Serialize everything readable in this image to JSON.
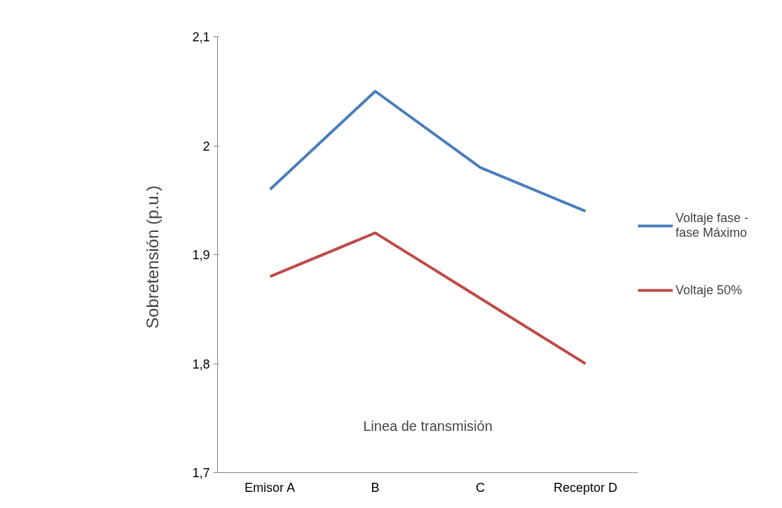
{
  "chart_data": {
    "type": "line",
    "xlabel": "Linea de transmisión",
    "ylabel": "Sobretensión  (p.u.)",
    "categories": [
      "Emisor A",
      "B",
      "C",
      "Receptor D"
    ],
    "series": [
      {
        "name": "Voltaje fase - fase Máximo",
        "color": "#4a7ebb",
        "values": [
          1.96,
          2.05,
          1.98,
          1.94
        ]
      },
      {
        "name": "Voltaje 50%",
        "color": "#be4b48",
        "values": [
          1.88,
          1.92,
          1.86,
          1.8
        ]
      }
    ],
    "ylim": [
      1.7,
      2.1
    ],
    "yticks": [
      {
        "value": 1.7,
        "label": "1,7"
      },
      {
        "value": 1.8,
        "label": "1,8"
      },
      {
        "value": 1.9,
        "label": "1,9"
      },
      2,
      {
        "value": 2.1,
        "label": "2,1"
      }
    ],
    "grid": false,
    "legend": "right",
    "marker": "none",
    "line_style": "solid"
  }
}
